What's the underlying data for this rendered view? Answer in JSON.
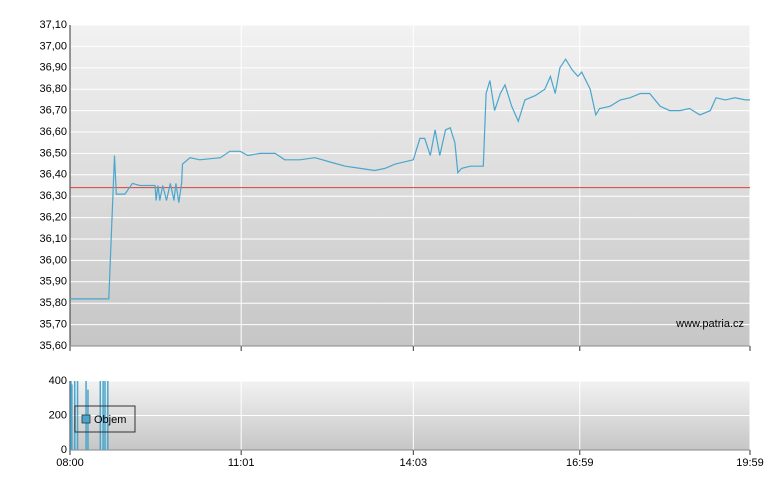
{
  "chart_data": [
    {
      "type": "line",
      "x": [
        480,
        521,
        527,
        529,
        538,
        546,
        554,
        570,
        571,
        573,
        575,
        578,
        582,
        586,
        590,
        592,
        595,
        598,
        599,
        607,
        617,
        639,
        649,
        660,
        668,
        681,
        697,
        707,
        723,
        739,
        755,
        771,
        787,
        802,
        813,
        824,
        843,
        850,
        855,
        861,
        866,
        871,
        877,
        882,
        887,
        890,
        894,
        903,
        917,
        920,
        924,
        929,
        935,
        940,
        947,
        954,
        961,
        972,
        982,
        988,
        993,
        998,
        1004,
        1011,
        1017,
        1021,
        1030,
        1036,
        1040,
        1051,
        1062,
        1072,
        1083,
        1093,
        1104,
        1114,
        1125,
        1135,
        1146,
        1157,
        1163,
        1173,
        1183,
        1194,
        1199
      ],
      "values": [
        35.82,
        35.82,
        36.49,
        36.31,
        36.31,
        36.36,
        36.35,
        36.35,
        36.28,
        36.35,
        36.28,
        36.35,
        36.28,
        36.36,
        36.28,
        36.36,
        36.27,
        36.36,
        36.45,
        36.48,
        36.47,
        36.48,
        36.51,
        36.51,
        36.49,
        36.5,
        36.5,
        36.47,
        36.47,
        36.48,
        36.46,
        36.44,
        36.43,
        36.42,
        36.43,
        36.45,
        36.47,
        36.57,
        36.57,
        36.49,
        36.61,
        36.49,
        36.61,
        36.62,
        36.55,
        36.41,
        36.43,
        36.44,
        36.44,
        36.78,
        36.84,
        36.7,
        36.78,
        36.82,
        36.72,
        36.65,
        36.75,
        36.77,
        36.8,
        36.86,
        36.78,
        36.9,
        36.94,
        36.89,
        36.86,
        36.88,
        36.8,
        36.68,
        36.71,
        36.72,
        36.75,
        36.76,
        36.78,
        36.78,
        36.72,
        36.7,
        36.7,
        36.71,
        36.68,
        36.7,
        36.76,
        36.75,
        36.76,
        36.75,
        36.75
      ],
      "color": "#4aa6cc",
      "reference_line": 36.34,
      "reference_color": "#d9403a",
      "xlim": [
        480,
        1199
      ],
      "ylim": [
        35.6,
        37.1
      ],
      "yticks": [
        {
          "value": 35.6,
          "label": "35,60"
        },
        {
          "value": 35.7,
          "label": "35,70"
        },
        {
          "value": 35.8,
          "label": "35,80"
        },
        {
          "value": 35.9,
          "label": "35,90"
        },
        {
          "value": 36.0,
          "label": "36,00"
        },
        {
          "value": 36.1,
          "label": "36,10"
        },
        {
          "value": 36.2,
          "label": "36,20"
        },
        {
          "value": 36.3,
          "label": "36,30"
        },
        {
          "value": 36.4,
          "label": "36,40"
        },
        {
          "value": 36.5,
          "label": "36,50"
        },
        {
          "value": 36.6,
          "label": "36,60"
        },
        {
          "value": 36.7,
          "label": "36,70"
        },
        {
          "value": 36.8,
          "label": "36,80"
        },
        {
          "value": 36.9,
          "label": "36,90"
        },
        {
          "value": 37.0,
          "label": "37,00"
        },
        {
          "value": 37.1,
          "label": "37,10"
        }
      ],
      "grid": true,
      "watermark": "www.patria.cz"
    },
    {
      "type": "bar",
      "series": [
        {
          "name": "Objem",
          "color": "#4aa6cc",
          "x": [
            481,
            482,
            485,
            488,
            497,
            499,
            512,
            515,
            517,
            520
          ],
          "values": [
            400,
            380,
            400,
            400,
            400,
            350,
            400,
            400,
            400,
            400
          ]
        }
      ],
      "xlim": [
        480,
        1199
      ],
      "xticks": [
        {
          "value": 480,
          "label": "08:00"
        },
        {
          "value": 661,
          "label": "11:01"
        },
        {
          "value": 843,
          "label": "14:03"
        },
        {
          "value": 1019,
          "label": "16:59"
        },
        {
          "value": 1199,
          "label": "19:59"
        }
      ],
      "ylim": [
        0,
        400
      ],
      "yticks": [
        0,
        200,
        400
      ],
      "grid": true
    }
  ]
}
